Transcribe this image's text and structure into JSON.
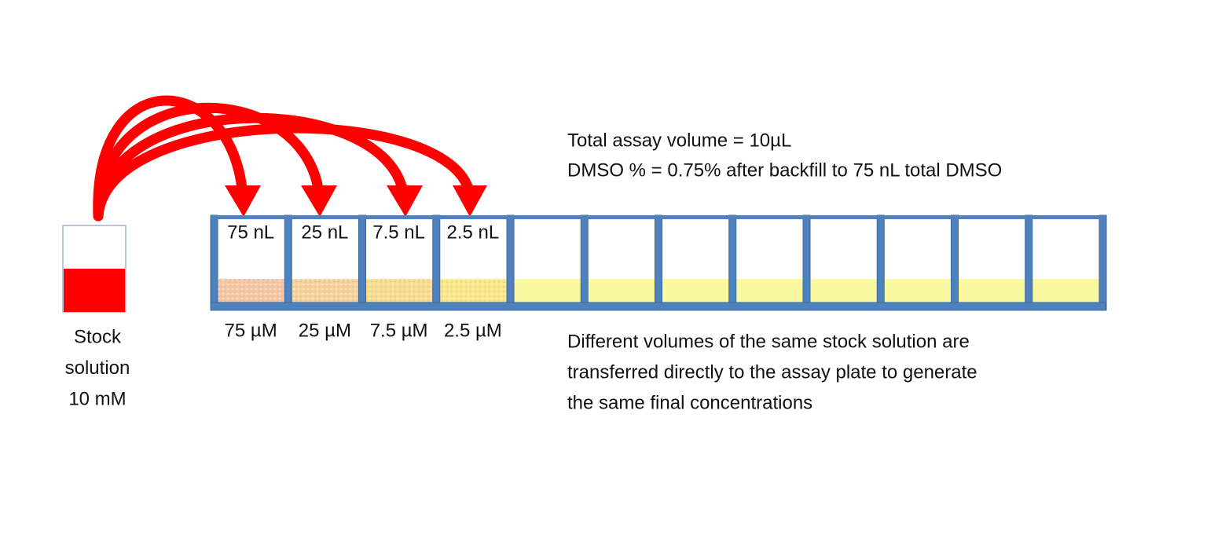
{
  "stock": {
    "label_lines": [
      "Stock",
      "solution",
      "10 mM"
    ]
  },
  "wells": [
    {
      "volume": "75 nL",
      "concentration": "75 µM"
    },
    {
      "volume": "25 nL",
      "concentration": "25 µM"
    },
    {
      "volume": "7.5 nL",
      "concentration": "7.5 µM"
    },
    {
      "volume": "2.5 nL",
      "concentration": "2.5 µM"
    }
  ],
  "assay_info": [
    "Total assay volume = 10µL",
    "DMSO % = 0.75% after backfill to 75 nL total DMSO"
  ],
  "description": [
    "Different volumes of the same stock solution are",
    "transferred directly to the assay plate to generate",
    "the same final concentrations"
  ]
}
